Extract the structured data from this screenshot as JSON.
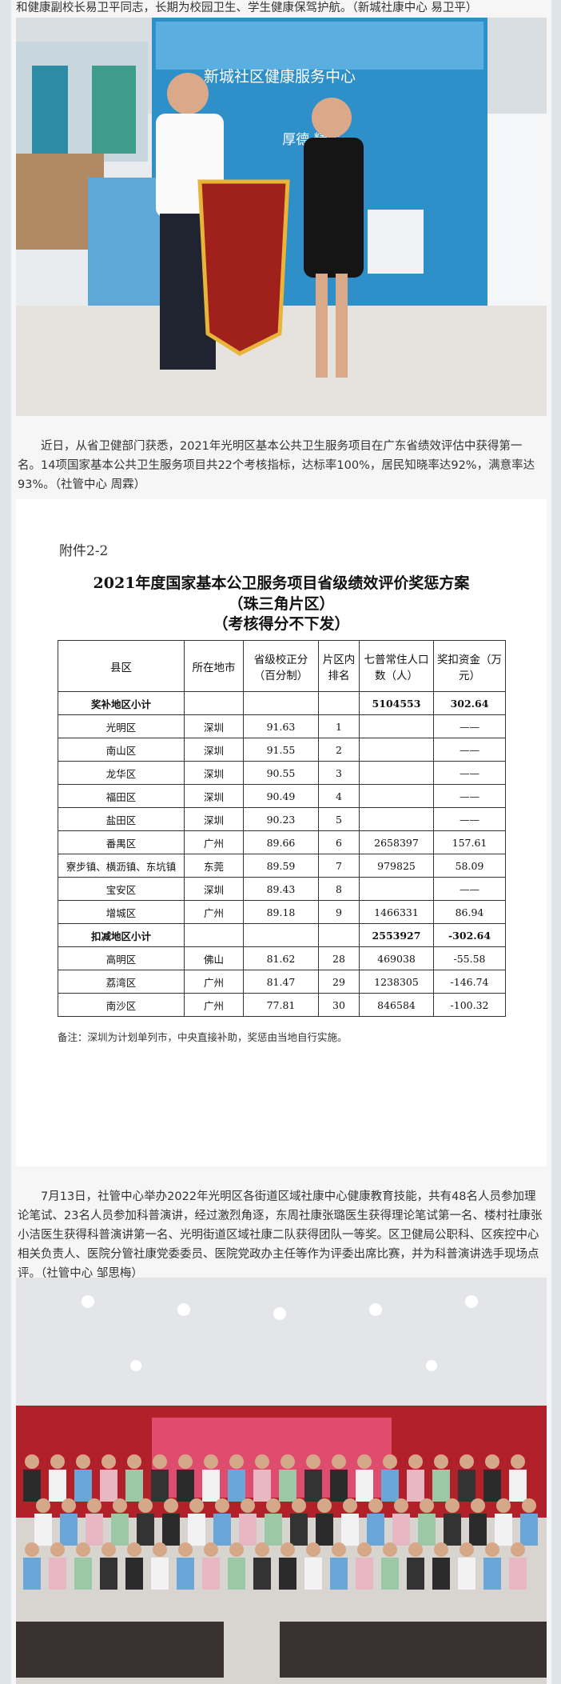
{
  "intro_tail": "和健康副校长易卫平同志，长期为校园卫生、学生健康保驾护航。（新城社康中心 易卫平）",
  "photo1": {
    "sign": "新城社区健康服务中心",
    "motto": "厚德 精医"
  },
  "paragraph2": "近日，从省卫健部门获悉，2021年光明区基本公共卫生服务项目在广东省绩效评估中获得第一名。14项国家基本公共卫生服务项目共22个考核指标，达标率100%，居民知晓率达92%，满意率达93%。（社管中心 周霖）",
  "attachment": {
    "label": "附件2-2",
    "title": [
      "2021年度国家基本公卫服务项目省级绩效评价奖惩方案",
      "（珠三角片区）",
      "（考核得分不下发）"
    ],
    "table": {
      "header": [
        "县区",
        "所在地市",
        "省级校正分（百分制）",
        "片区内排名",
        "七普常住人口数（人）",
        "奖扣资金（万元）"
      ],
      "rows": [
        [
          "奖补地区小计",
          null,
          null,
          null,
          "5104553",
          "302.64"
        ],
        [
          "光明区",
          "深圳",
          "91.63",
          "1",
          null,
          "——"
        ],
        [
          "南山区",
          "深圳",
          "91.55",
          "2",
          null,
          "——"
        ],
        [
          "龙华区",
          "深圳",
          "90.55",
          "3",
          null,
          "——"
        ],
        [
          "福田区",
          "深圳",
          "90.49",
          "4",
          null,
          "——"
        ],
        [
          "盐田区",
          "深圳",
          "90.23",
          "5",
          null,
          "——"
        ],
        [
          "番禺区",
          "广州",
          "89.66",
          "6",
          "2658397",
          "157.61"
        ],
        [
          "寮步镇、横沥镇、东坑镇",
          "东莞",
          "89.59",
          "7",
          "979825",
          "58.09"
        ],
        [
          "宝安区",
          "深圳",
          "89.43",
          "8",
          null,
          "——"
        ],
        [
          "增城区",
          "广州",
          "89.18",
          "9",
          "1466331",
          "86.94"
        ],
        [
          "扣减地区小计",
          null,
          null,
          null,
          "2553927",
          "-302.64"
        ],
        [
          "高明区",
          "佛山",
          "81.62",
          "28",
          "469038",
          "-55.58"
        ],
        [
          "荔湾区",
          "广州",
          "81.47",
          "29",
          "1238305",
          "-146.74"
        ],
        [
          "南沙区",
          "广州",
          "77.81",
          "30",
          "846584",
          "-100.32"
        ]
      ]
    },
    "note": "备注：深圳为计划单列市，中央直接补助，奖惩由当地自行实施。"
  },
  "paragraph3": "7月13日，社管中心举办2022年光明区各街道区域社康中心健康教育技能，共有48名人员参加理论笔试、23名人员参加科普演讲，经过激烈角逐，东周社康张璐医生获得理论笔试第一名、楼村社康张小洁医生获得科普演讲第一名、光明街道区域社康二队获得团队一等奖。区卫健局公职科、区疾控中心相关负责人、医院分管社康党委委员、医院党政办主任等作为评委出席比赛，并为科普演讲选手现场点评。（社管中心 邹思梅）"
}
